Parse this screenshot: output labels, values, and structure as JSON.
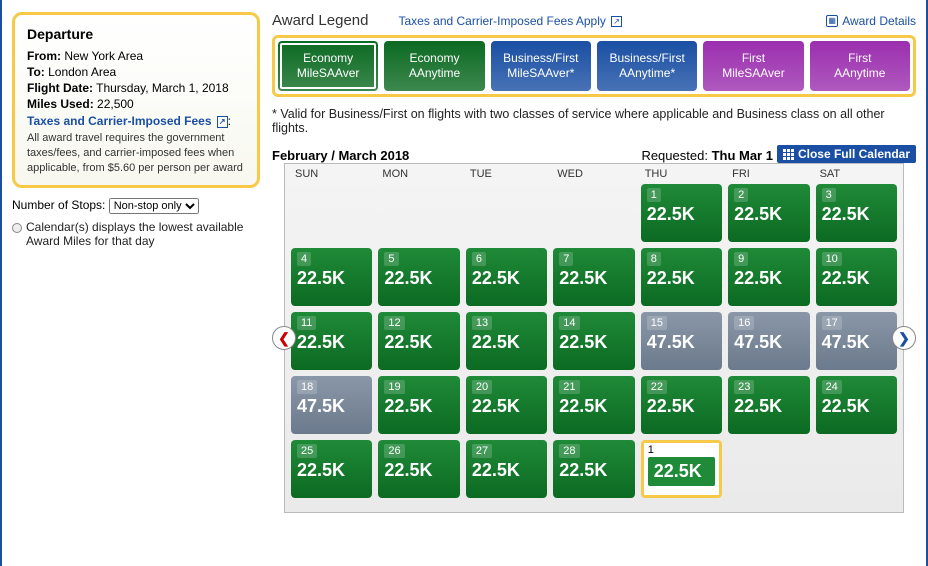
{
  "departure": {
    "heading": "Departure",
    "fromLabel": "From:",
    "from": "New York Area",
    "toLabel": "To:",
    "to": "London Area",
    "dateLabel": "Flight Date:",
    "date": "Thursday, March 1, 2018",
    "milesLabel": "Miles Used:",
    "miles": "22,500",
    "taxesLink": "Taxes and Carrier-Imposed Fees",
    "finePrint": "All award travel requires the government taxes/fees, and carrier-imposed fees when applicable, from $5.60 per person per award"
  },
  "stops": {
    "label": "Number of Stops:",
    "selected": "Non-stop only",
    "options": [
      "Non-stop only"
    ]
  },
  "lowestNote": "Calendar(s) displays the lowest available Award Miles for that day",
  "legend": {
    "title": "Award Legend",
    "taxesLink": "Taxes and Carrier-Imposed Fees Apply",
    "detailsLink": "Award Details"
  },
  "tabs": [
    {
      "l1": "Economy",
      "l2": "MileSAAver",
      "bg": "#0c6a22",
      "selected": true
    },
    {
      "l1": "Economy",
      "l2": "AAnytime",
      "bg": "#0c6a22"
    },
    {
      "l1": "Business/First",
      "l2": "MileSAAver*",
      "bg": "#1a4fa3"
    },
    {
      "l1": "Business/First",
      "l2": "AAnytime*",
      "bg": "#1a4fa3"
    },
    {
      "l1": "First",
      "l2": "MileSAAver",
      "bg": "#9b2fae"
    },
    {
      "l1": "First",
      "l2": "AAnytime",
      "bg": "#9b2fae"
    }
  ],
  "footnote": "* Valid for Business/First on flights with two classes of service where applicable and Business class on all other flights.",
  "calendar": {
    "monthLabel": "February / March 2018",
    "requestedLabel": "Requested:",
    "requestedDate": "Thu Mar 1",
    "closeLabel": "Close Full Calendar",
    "dow": [
      "SUN",
      "MON",
      "TUE",
      "WED",
      "THU",
      "FRI",
      "SAT"
    ],
    "blanksBefore": 4,
    "days": [
      {
        "d": "1",
        "m": "22.5K",
        "c": "green"
      },
      {
        "d": "2",
        "m": "22.5K",
        "c": "green"
      },
      {
        "d": "3",
        "m": "22.5K",
        "c": "green"
      },
      {
        "d": "4",
        "m": "22.5K",
        "c": "green"
      },
      {
        "d": "5",
        "m": "22.5K",
        "c": "green"
      },
      {
        "d": "6",
        "m": "22.5K",
        "c": "green"
      },
      {
        "d": "7",
        "m": "22.5K",
        "c": "green"
      },
      {
        "d": "8",
        "m": "22.5K",
        "c": "green"
      },
      {
        "d": "9",
        "m": "22.5K",
        "c": "green"
      },
      {
        "d": "10",
        "m": "22.5K",
        "c": "green"
      },
      {
        "d": "11",
        "m": "22.5K",
        "c": "green"
      },
      {
        "d": "12",
        "m": "22.5K",
        "c": "green"
      },
      {
        "d": "13",
        "m": "22.5K",
        "c": "green"
      },
      {
        "d": "14",
        "m": "22.5K",
        "c": "green"
      },
      {
        "d": "15",
        "m": "47.5K",
        "c": "grey"
      },
      {
        "d": "16",
        "m": "47.5K",
        "c": "grey"
      },
      {
        "d": "17",
        "m": "47.5K",
        "c": "grey"
      },
      {
        "d": "18",
        "m": "47.5K",
        "c": "grey"
      },
      {
        "d": "19",
        "m": "22.5K",
        "c": "green"
      },
      {
        "d": "20",
        "m": "22.5K",
        "c": "green"
      },
      {
        "d": "21",
        "m": "22.5K",
        "c": "green"
      },
      {
        "d": "22",
        "m": "22.5K",
        "c": "green"
      },
      {
        "d": "23",
        "m": "22.5K",
        "c": "green"
      },
      {
        "d": "24",
        "m": "22.5K",
        "c": "green"
      },
      {
        "d": "25",
        "m": "22.5K",
        "c": "green"
      },
      {
        "d": "26",
        "m": "22.5K",
        "c": "green"
      },
      {
        "d": "27",
        "m": "22.5K",
        "c": "green"
      },
      {
        "d": "28",
        "m": "22.5K",
        "c": "green"
      },
      {
        "d": "1",
        "m": "22.5K",
        "c": "req",
        "requested": true
      }
    ]
  }
}
